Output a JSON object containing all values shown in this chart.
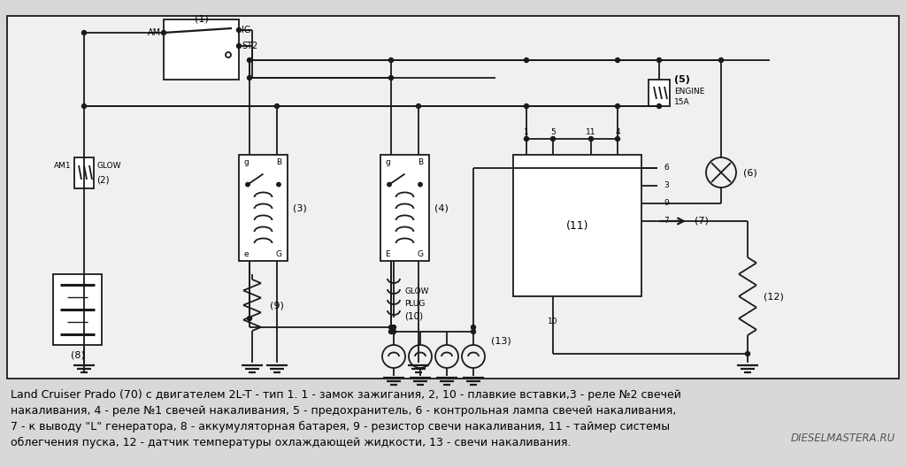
{
  "background_color": "#d8d8d8",
  "diagram_bg": "#f0f0f0",
  "line_color": "#1a1a1a",
  "caption_line1": "Land Cruiser Prado (70) с двигателем 2L-T - тип 1. 1 - замок зажигания, 2, 10 - плавкие вставки,3 - реле №2 свечей",
  "caption_line2": "накаливания, 4 - реле №1 свечей накаливания, 5 - предохранитель, 6 - контрольная лампа свечей накаливания,",
  "caption_line3": "7 - к выводу \"L\" генератора, 8 - аккумуляторная батарея, 9 - резистор свечи накаливания, 11 - таймер системы",
  "caption_line4": "облегчения пуска, 12 - датчик температуры охлаждающей жидкости, 13 - свечи накаливания.",
  "watermark": "DIESELMASTERA.RU",
  "font_size_caption": 9.0
}
